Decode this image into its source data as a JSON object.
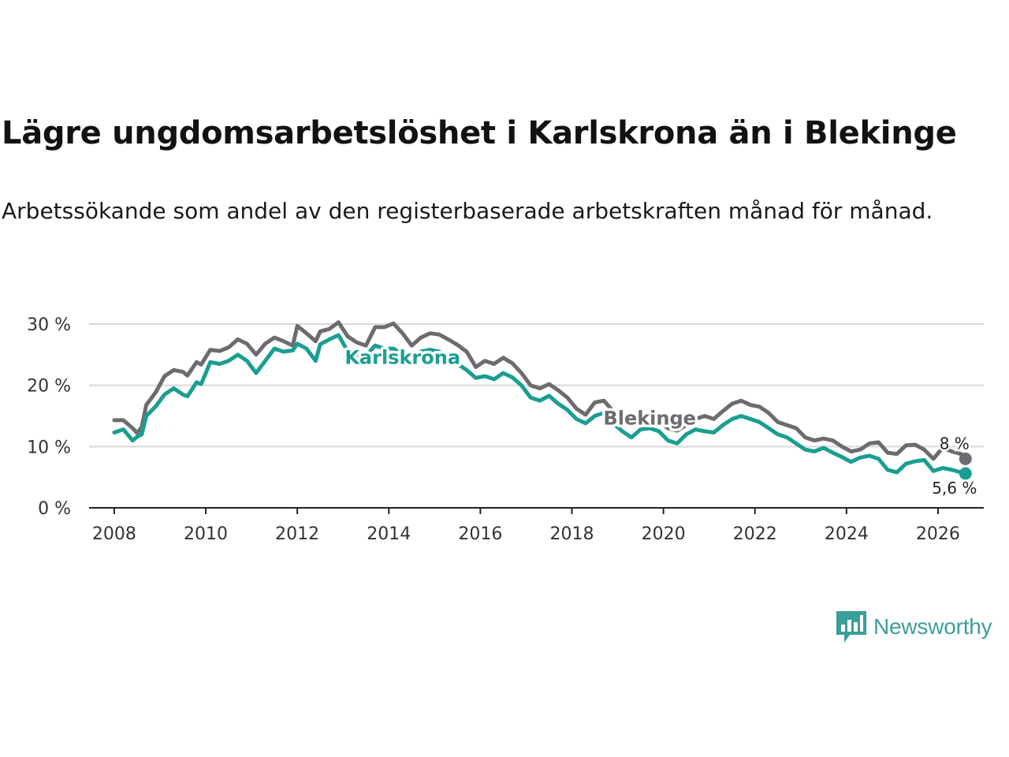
{
  "title": "Lägre ungdomsarbetslöshet i Karlskrona än i Blekinge",
  "subtitle": "Arbetssökande som andel av den registerbaserade arbetskraften månad för månad.",
  "brand": {
    "name": "Newsworthy",
    "color": "#3b9e98"
  },
  "chart_data": {
    "type": "line",
    "title": "Lägre ungdomsarbetslöshet i Karlskrona än i Blekinge",
    "xlabel": "",
    "ylabel": "",
    "xlim": [
      2007.45,
      2027.0
    ],
    "ylim": [
      0,
      30
    ],
    "x_ticks": [
      2008,
      2010,
      2012,
      2014,
      2016,
      2018,
      2020,
      2022,
      2024,
      2026
    ],
    "x_tick_labels": [
      "2008",
      "2010",
      "2012",
      "2014",
      "2016",
      "2018",
      "2020",
      "2022",
      "2024",
      "2026"
    ],
    "y_ticks": [
      0,
      10,
      20,
      30
    ],
    "y_tick_labels": [
      "0 %",
      "10 %",
      "20 %",
      "30 %"
    ],
    "grid": true,
    "series": [
      {
        "name": "Blekinge",
        "color": "#6e6b70",
        "end_label": "8 %",
        "points": [
          [
            2008.0,
            14.3
          ],
          [
            2008.2,
            14.3
          ],
          [
            2008.4,
            13.0
          ],
          [
            2008.5,
            12.2
          ],
          [
            2008.6,
            13.2
          ],
          [
            2008.7,
            16.8
          ],
          [
            2008.9,
            18.8
          ],
          [
            2009.1,
            21.5
          ],
          [
            2009.3,
            22.5
          ],
          [
            2009.5,
            22.2
          ],
          [
            2009.6,
            21.6
          ],
          [
            2009.8,
            23.8
          ],
          [
            2009.9,
            23.4
          ],
          [
            2010.1,
            25.8
          ],
          [
            2010.3,
            25.6
          ],
          [
            2010.5,
            26.2
          ],
          [
            2010.7,
            27.5
          ],
          [
            2010.9,
            26.8
          ],
          [
            2011.1,
            25.0
          ],
          [
            2011.3,
            26.8
          ],
          [
            2011.5,
            27.8
          ],
          [
            2011.7,
            27.2
          ],
          [
            2011.9,
            26.5
          ],
          [
            2012.0,
            29.7
          ],
          [
            2012.2,
            28.5
          ],
          [
            2012.4,
            27.2
          ],
          [
            2012.5,
            28.8
          ],
          [
            2012.7,
            29.2
          ],
          [
            2012.9,
            30.3
          ],
          [
            2013.1,
            28.0
          ],
          [
            2013.3,
            27.0
          ],
          [
            2013.5,
            26.5
          ],
          [
            2013.7,
            29.5
          ],
          [
            2013.9,
            29.5
          ],
          [
            2014.1,
            30.1
          ],
          [
            2014.3,
            28.5
          ],
          [
            2014.5,
            26.5
          ],
          [
            2014.7,
            27.8
          ],
          [
            2014.9,
            28.5
          ],
          [
            2015.1,
            28.3
          ],
          [
            2015.3,
            27.5
          ],
          [
            2015.5,
            26.6
          ],
          [
            2015.7,
            25.5
          ],
          [
            2015.9,
            23.0
          ],
          [
            2016.1,
            24.0
          ],
          [
            2016.3,
            23.5
          ],
          [
            2016.5,
            24.5
          ],
          [
            2016.7,
            23.6
          ],
          [
            2016.9,
            22.0
          ],
          [
            2017.1,
            20.0
          ],
          [
            2017.3,
            19.5
          ],
          [
            2017.5,
            20.2
          ],
          [
            2017.7,
            19.2
          ],
          [
            2017.9,
            18.0
          ],
          [
            2018.1,
            16.2
          ],
          [
            2018.3,
            15.2
          ],
          [
            2018.5,
            17.2
          ],
          [
            2018.7,
            17.5
          ],
          [
            2018.9,
            15.8
          ],
          [
            2019.1,
            14.5
          ],
          [
            2019.3,
            13.5
          ],
          [
            2019.5,
            14.8
          ],
          [
            2019.7,
            15.0
          ],
          [
            2019.9,
            14.2
          ],
          [
            2020.1,
            13.0
          ],
          [
            2020.3,
            12.6
          ],
          [
            2020.5,
            13.5
          ],
          [
            2020.7,
            14.5
          ],
          [
            2020.9,
            15.0
          ],
          [
            2021.1,
            14.5
          ],
          [
            2021.3,
            15.8
          ],
          [
            2021.5,
            17.0
          ],
          [
            2021.7,
            17.5
          ],
          [
            2021.9,
            16.8
          ],
          [
            2022.1,
            16.5
          ],
          [
            2022.3,
            15.5
          ],
          [
            2022.5,
            14.0
          ],
          [
            2022.7,
            13.5
          ],
          [
            2022.9,
            13.0
          ],
          [
            2023.1,
            11.5
          ],
          [
            2023.3,
            11.0
          ],
          [
            2023.5,
            11.3
          ],
          [
            2023.7,
            11.0
          ],
          [
            2023.9,
            10.0
          ],
          [
            2024.1,
            9.2
          ],
          [
            2024.3,
            9.5
          ],
          [
            2024.5,
            10.5
          ],
          [
            2024.7,
            10.7
          ],
          [
            2024.9,
            9.0
          ],
          [
            2025.1,
            8.8
          ],
          [
            2025.3,
            10.2
          ],
          [
            2025.5,
            10.3
          ],
          [
            2025.7,
            9.5
          ],
          [
            2025.9,
            8.0
          ],
          [
            2026.1,
            9.8
          ],
          [
            2026.3,
            9.2
          ],
          [
            2026.5,
            8.8
          ],
          [
            2026.6,
            8.0
          ]
        ]
      },
      {
        "name": "Karlskrona",
        "color": "#1a9e92",
        "end_label": "5,6 %",
        "points": [
          [
            2008.0,
            12.3
          ],
          [
            2008.2,
            12.8
          ],
          [
            2008.4,
            11.0
          ],
          [
            2008.5,
            11.6
          ],
          [
            2008.6,
            12.0
          ],
          [
            2008.7,
            15.0
          ],
          [
            2008.9,
            16.5
          ],
          [
            2009.1,
            18.5
          ],
          [
            2009.3,
            19.5
          ],
          [
            2009.5,
            18.5
          ],
          [
            2009.6,
            18.2
          ],
          [
            2009.8,
            20.5
          ],
          [
            2009.9,
            20.2
          ],
          [
            2010.1,
            23.8
          ],
          [
            2010.3,
            23.5
          ],
          [
            2010.5,
            24.0
          ],
          [
            2010.7,
            25.0
          ],
          [
            2010.9,
            24.0
          ],
          [
            2011.1,
            22.0
          ],
          [
            2011.3,
            24.0
          ],
          [
            2011.5,
            26.0
          ],
          [
            2011.7,
            25.5
          ],
          [
            2011.9,
            25.7
          ],
          [
            2012.0,
            26.8
          ],
          [
            2012.2,
            26.0
          ],
          [
            2012.4,
            24.0
          ],
          [
            2012.5,
            26.7
          ],
          [
            2012.7,
            27.5
          ],
          [
            2012.9,
            28.2
          ],
          [
            2013.1,
            25.6
          ],
          [
            2013.3,
            25.0
          ],
          [
            2013.5,
            24.8
          ],
          [
            2013.7,
            26.5
          ],
          [
            2013.9,
            26.0
          ],
          [
            2014.1,
            26.0
          ],
          [
            2014.3,
            25.0
          ],
          [
            2014.5,
            24.0
          ],
          [
            2014.7,
            25.5
          ],
          [
            2014.9,
            25.8
          ],
          [
            2015.1,
            25.5
          ],
          [
            2015.3,
            24.5
          ],
          [
            2015.5,
            23.5
          ],
          [
            2015.7,
            22.5
          ],
          [
            2015.9,
            21.2
          ],
          [
            2016.1,
            21.5
          ],
          [
            2016.3,
            21.0
          ],
          [
            2016.5,
            22.0
          ],
          [
            2016.7,
            21.3
          ],
          [
            2016.9,
            20.0
          ],
          [
            2017.1,
            18.0
          ],
          [
            2017.3,
            17.5
          ],
          [
            2017.5,
            18.3
          ],
          [
            2017.7,
            17.0
          ],
          [
            2017.9,
            16.0
          ],
          [
            2018.1,
            14.5
          ],
          [
            2018.3,
            13.8
          ],
          [
            2018.5,
            15.0
          ],
          [
            2018.7,
            15.5
          ],
          [
            2018.9,
            13.8
          ],
          [
            2019.1,
            12.5
          ],
          [
            2019.3,
            11.5
          ],
          [
            2019.5,
            12.8
          ],
          [
            2019.7,
            13.0
          ],
          [
            2019.9,
            12.5
          ],
          [
            2020.1,
            11.0
          ],
          [
            2020.3,
            10.5
          ],
          [
            2020.5,
            12.0
          ],
          [
            2020.7,
            12.8
          ],
          [
            2020.9,
            12.5
          ],
          [
            2021.1,
            12.3
          ],
          [
            2021.3,
            13.5
          ],
          [
            2021.5,
            14.5
          ],
          [
            2021.7,
            15.0
          ],
          [
            2021.9,
            14.5
          ],
          [
            2022.1,
            14.0
          ],
          [
            2022.3,
            13.0
          ],
          [
            2022.5,
            12.0
          ],
          [
            2022.7,
            11.5
          ],
          [
            2022.9,
            10.5
          ],
          [
            2023.1,
            9.5
          ],
          [
            2023.3,
            9.2
          ],
          [
            2023.5,
            9.8
          ],
          [
            2023.7,
            9.0
          ],
          [
            2023.9,
            8.3
          ],
          [
            2024.1,
            7.5
          ],
          [
            2024.3,
            8.2
          ],
          [
            2024.5,
            8.5
          ],
          [
            2024.7,
            8.0
          ],
          [
            2024.9,
            6.2
          ],
          [
            2025.1,
            5.8
          ],
          [
            2025.3,
            7.2
          ],
          [
            2025.5,
            7.6
          ],
          [
            2025.7,
            7.8
          ],
          [
            2025.9,
            6.0
          ],
          [
            2026.1,
            6.5
          ],
          [
            2026.3,
            6.2
          ],
          [
            2026.5,
            5.8
          ],
          [
            2026.6,
            5.6
          ]
        ]
      }
    ]
  }
}
